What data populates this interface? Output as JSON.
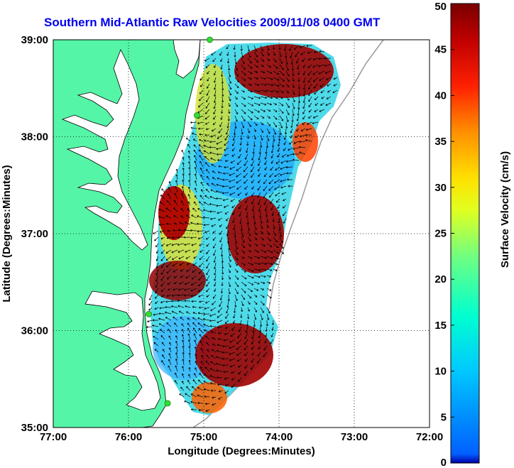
{
  "title": "Southern Mid-Atlantic Raw Velocities 2009/11/08 0400 GMT",
  "axes": {
    "xlabel": "Longitude (Degrees:Minutes)",
    "ylabel": "Latitude (Degrees:Minutes)",
    "x_ticks": [
      "77:00",
      "76:00",
      "75:00",
      "74:00",
      "73:00",
      "72:00"
    ],
    "y_ticks": [
      "39:00",
      "38:00",
      "37:00",
      "36:00",
      "35:00"
    ],
    "x_range": [
      -77,
      -72
    ],
    "y_range": [
      35,
      39
    ],
    "grid": "dotted"
  },
  "colorbar": {
    "label": "Surface Velocity (cm/s)",
    "ticks": [
      "0",
      "5",
      "10",
      "15",
      "20",
      "25",
      "30",
      "35",
      "40",
      "45",
      "50"
    ],
    "range": [
      0,
      50
    ],
    "colormap": "jet"
  },
  "colors": {
    "land": "#55f5a8",
    "water": "#ffffff",
    "coastline": "#000000",
    "title": "#0000ee",
    "station_marker": "#33dd33",
    "bathymetry_contour": "#999999"
  },
  "stations": [
    {
      "lon": -74.92,
      "lat": 39.0
    },
    {
      "lon": -75.09,
      "lat": 38.22
    },
    {
      "lon": -75.73,
      "lat": 36.17
    },
    {
      "lon": -75.48,
      "lat": 35.25
    }
  ],
  "velocity_field": {
    "speed_hotspots": [
      {
        "lon": -74.4,
        "lat": 38.7,
        "speed": 47
      },
      {
        "lon": -75.45,
        "lat": 37.05,
        "speed": 48
      },
      {
        "lon": -74.3,
        "lat": 36.9,
        "speed": 46
      },
      {
        "lon": -75.25,
        "lat": 36.6,
        "speed": 45
      },
      {
        "lon": -74.25,
        "lat": 35.75,
        "speed": 48
      },
      {
        "lon": -73.5,
        "lat": 38.2,
        "speed": 40
      }
    ],
    "speed_lows": [
      {
        "lon": -74.5,
        "lat": 37.6,
        "speed": 8
      },
      {
        "lon": -75.3,
        "lat": 36.0,
        "speed": 10
      },
      {
        "lon": -75.05,
        "lat": 37.0,
        "speed": 9
      }
    ]
  }
}
